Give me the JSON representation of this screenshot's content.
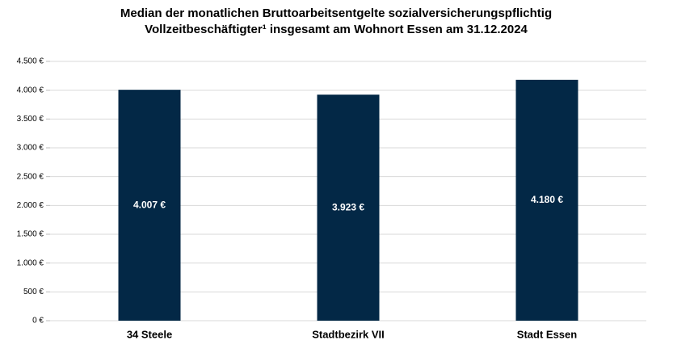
{
  "chart_data": {
    "type": "bar",
    "title": [
      "Median der monatlichen Bruttoarbeitsentgelte sozialversicherungspflichtig",
      "Vollzeitbeschäftigter¹ insgesamt am Wohnort Essen am 31.12.2024"
    ],
    "categories": [
      "34 Steele",
      "Stadtbezirk VII",
      "Stadt Essen"
    ],
    "values": [
      4007,
      3923,
      4180
    ],
    "value_labels": [
      "4.007 €",
      "3.923 €",
      "4.180 €"
    ],
    "color": "#032846",
    "ylim": [
      0,
      4500
    ],
    "yticks": [
      {
        "value": 0,
        "label": "0 €"
      },
      {
        "value": 500,
        "label": "500 €"
      },
      {
        "value": 1000,
        "label": "1.000 €"
      },
      {
        "value": 1500,
        "label": "1.500 €"
      },
      {
        "value": 2000,
        "label": "2.000 €"
      },
      {
        "value": 2500,
        "label": "2.500 €"
      },
      {
        "value": 3000,
        "label": "3.000 €"
      },
      {
        "value": 3500,
        "label": "3.500 €"
      },
      {
        "value": 4000,
        "label": "4.000 €"
      },
      {
        "value": 4500,
        "label": "4.500 €"
      }
    ],
    "grid": true
  }
}
